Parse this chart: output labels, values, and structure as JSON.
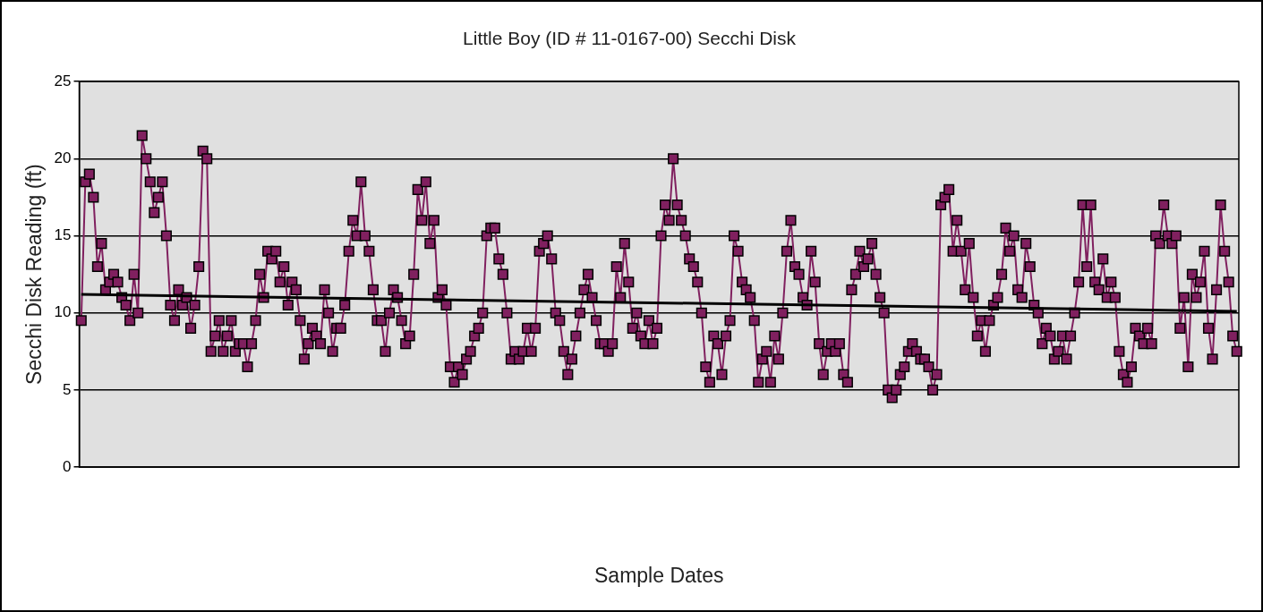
{
  "chart_data": {
    "type": "line",
    "title": "Little Boy (ID # 11-0167-00) Secchi Disk",
    "xlabel": "Sample Dates",
    "ylabel": "Secchi Disk Reading (ft)",
    "categories": [
      null,
      null,
      null,
      null,
      null,
      null,
      null,
      null,
      null,
      null,
      null,
      null,
      null,
      null,
      null,
      null,
      null,
      null,
      null,
      null,
      null,
      null,
      null,
      null,
      null,
      null,
      null,
      null,
      null,
      null,
      null,
      null,
      null,
      null,
      null,
      null,
      null,
      null,
      null,
      null,
      null,
      null,
      null,
      null,
      null,
      null,
      null,
      null,
      null,
      null,
      null,
      null,
      null,
      null,
      null,
      null,
      null,
      null,
      null,
      null,
      null,
      null,
      null,
      null,
      null,
      null,
      null,
      null,
      null,
      null,
      null,
      null,
      null,
      null,
      null,
      null,
      null,
      null,
      null,
      null,
      null,
      null,
      null,
      null,
      null,
      null,
      null,
      null,
      null,
      null,
      null,
      null,
      null,
      null,
      null,
      null,
      null,
      null,
      null,
      null,
      null,
      null,
      null,
      null,
      null,
      null,
      null,
      null,
      null,
      null,
      null,
      null,
      null,
      null,
      null,
      null,
      null,
      null,
      null,
      null,
      null,
      null,
      null,
      null,
      null,
      null,
      null,
      null,
      null,
      null,
      null,
      null,
      null,
      null,
      null,
      null,
      null,
      null,
      null,
      null,
      null,
      null,
      null,
      null,
      null,
      null,
      null,
      null,
      null,
      null,
      null,
      null,
      null,
      null,
      null,
      null,
      null,
      null,
      null,
      null,
      null,
      null,
      null,
      null,
      null,
      null,
      null,
      null,
      null,
      null,
      null,
      null,
      null,
      null,
      null,
      null,
      null,
      null,
      null,
      null,
      null,
      null,
      null,
      null,
      null,
      null,
      null,
      null,
      null,
      null,
      null,
      null,
      null,
      null,
      null,
      null,
      null,
      null,
      null,
      null,
      null,
      null,
      null,
      null,
      null,
      null,
      null,
      null,
      null,
      null,
      null,
      null,
      null,
      null,
      null,
      null,
      null,
      null,
      null,
      null,
      null,
      null,
      null,
      null,
      null,
      null,
      null,
      null,
      null,
      null,
      null,
      null,
      null,
      null,
      null,
      null,
      null,
      null,
      null,
      null,
      null,
      null,
      null,
      null,
      null,
      null,
      null,
      null,
      null,
      null,
      null,
      null,
      null,
      null,
      null,
      null,
      null,
      null,
      null,
      null,
      null,
      null,
      null,
      null,
      null,
      null,
      null,
      null,
      null,
      null,
      null,
      null,
      null,
      null,
      null,
      null,
      null,
      null,
      null,
      null,
      null,
      null,
      null,
      null,
      null,
      null
    ],
    "series": [
      {
        "color": "#80205f",
        "marker": "square",
        "values": [
          9.5,
          18.5,
          19,
          17.5,
          13,
          14.5,
          11.5,
          12,
          12.5,
          12,
          11,
          10.5,
          9.5,
          12.5,
          10,
          21.5,
          20,
          18.5,
          16.5,
          17.5,
          18.5,
          15,
          10.5,
          9.5,
          11.5,
          10.5,
          11,
          9,
          10.5,
          13,
          20.5,
          20,
          7.5,
          8.5,
          9.5,
          7.5,
          8.5,
          9.5,
          7.5,
          8,
          8,
          6.5,
          8,
          9.5,
          12.5,
          11,
          14,
          13.5,
          14,
          12,
          13,
          10.5,
          12,
          11.5,
          9.5,
          7,
          8,
          9,
          8.5,
          8,
          11.5,
          10,
          7.5,
          9,
          9,
          10.5,
          14,
          16,
          15,
          18.5,
          15,
          14,
          11.5,
          9.5,
          9.5,
          7.5,
          10,
          11.5,
          11,
          9.5,
          8,
          8.5,
          12.5,
          18,
          16,
          18.5,
          14.5,
          16,
          11,
          11.5,
          10.5,
          6.5,
          5.5,
          6.5,
          6,
          7,
          7.5,
          8.5,
          9,
          10,
          15,
          15.5,
          15.5,
          13.5,
          12.5,
          10,
          7,
          7.5,
          7,
          7.5,
          9,
          7.5,
          9,
          14,
          14.5,
          15,
          13.5,
          10,
          9.5,
          7.5,
          6,
          7,
          8.5,
          10,
          11.5,
          12.5,
          11,
          9.5,
          8,
          8,
          7.5,
          8,
          13,
          11,
          14.5,
          12,
          9,
          10,
          8.5,
          8,
          9.5,
          8,
          9,
          15,
          17,
          16,
          20,
          17,
          16,
          15,
          13.5,
          13,
          12,
          10,
          6.5,
          5.5,
          8.5,
          8,
          6,
          8.5,
          9.5,
          15,
          14,
          12,
          11.5,
          11,
          9.5,
          5.5,
          7,
          7.5,
          5.5,
          8.5,
          7,
          10,
          14,
          16,
          13,
          12.5,
          11,
          10.5,
          14,
          12,
          8,
          6,
          7.5,
          8,
          7.5,
          8,
          6,
          5.5,
          11.5,
          12.5,
          14,
          13,
          13.5,
          14.5,
          12.5,
          11,
          10,
          5,
          4.5,
          5,
          6,
          6.5,
          7.5,
          8,
          7.5,
          7,
          7,
          6.5,
          5,
          6,
          17,
          17.5,
          18,
          14,
          16,
          14,
          11.5,
          14.5,
          11,
          8.5,
          9.5,
          7.5,
          9.5,
          10.5,
          11,
          12.5,
          15.5,
          14,
          15,
          11.5,
          11,
          14.5,
          13,
          10.5,
          10,
          8,
          9,
          8.5,
          7,
          7.5,
          8.5,
          7,
          8.5,
          10,
          12,
          17,
          13,
          17,
          12,
          11.5,
          13.5,
          11,
          12,
          11,
          7.5,
          6,
          5.5,
          6.5,
          9,
          8.5,
          8,
          9,
          8,
          15,
          14.5,
          17,
          15,
          14.5,
          15,
          9,
          11,
          6.5,
          12.5,
          11,
          12,
          14,
          9,
          7,
          11.5,
          17,
          14,
          12,
          8.5,
          7.5
        ]
      },
      {
        "type": "line",
        "color": "#000000",
        "marker": "none",
        "values": [
          11.2,
          null,
          null,
          null,
          null,
          null,
          null,
          null,
          null,
          null,
          null,
          null,
          null,
          null,
          null,
          null,
          null,
          null,
          null,
          null,
          null,
          null,
          null,
          null,
          null,
          null,
          null,
          null,
          null,
          null,
          null,
          null,
          null,
          null,
          null,
          null,
          null,
          null,
          null,
          null,
          null,
          null,
          null,
          null,
          null,
          null,
          null,
          null,
          null,
          null,
          null,
          null,
          null,
          null,
          null,
          null,
          null,
          null,
          null,
          null,
          null,
          null,
          null,
          null,
          null,
          null,
          null,
          null,
          null,
          null,
          null,
          null,
          null,
          null,
          null,
          null,
          null,
          null,
          null,
          null,
          null,
          null,
          null,
          null,
          null,
          null,
          null,
          null,
          null,
          null,
          null,
          null,
          null,
          null,
          null,
          null,
          null,
          null,
          null,
          null,
          null,
          null,
          null,
          null,
          null,
          null,
          null,
          null,
          null,
          null,
          null,
          null,
          null,
          null,
          null,
          null,
          null,
          null,
          null,
          null,
          null,
          null,
          null,
          null,
          null,
          null,
          null,
          null,
          null,
          null,
          null,
          null,
          null,
          null,
          null,
          null,
          null,
          null,
          null,
          null,
          null,
          null,
          null,
          null,
          null,
          null,
          null,
          null,
          null,
          null,
          null,
          null,
          null,
          null,
          null,
          null,
          null,
          null,
          null,
          null,
          null,
          null,
          null,
          null,
          null,
          null,
          null,
          null,
          null,
          null,
          null,
          null,
          null,
          null,
          null,
          null,
          null,
          null,
          null,
          null,
          null,
          null,
          null,
          null,
          null,
          null,
          null,
          null,
          null,
          null,
          null,
          null,
          null,
          null,
          null,
          null,
          null,
          null,
          null,
          null,
          null,
          null,
          null,
          null,
          null,
          null,
          null,
          null,
          null,
          null,
          null,
          null,
          null,
          null,
          null,
          null,
          null,
          null,
          null,
          null,
          null,
          null,
          null,
          null,
          null,
          null,
          null,
          null,
          null,
          null,
          null,
          null,
          null,
          null,
          null,
          null,
          null,
          null,
          null,
          null,
          null,
          null,
          null,
          null,
          null,
          null,
          null,
          null,
          null,
          null,
          null,
          null,
          null,
          null,
          null,
          null,
          null,
          null,
          null,
          null,
          null,
          null,
          null,
          null,
          null,
          null,
          null,
          null,
          null,
          null,
          null,
          null,
          null,
          null,
          null,
          null,
          null,
          null,
          null,
          null,
          null,
          null,
          null,
          null,
          null,
          10.1
        ]
      }
    ],
    "ylim": [
      0,
      25
    ],
    "yticks": [
      0,
      5,
      10,
      15,
      20,
      25
    ],
    "grid": "y",
    "tick_labels": "y",
    "line_style": "solid"
  }
}
